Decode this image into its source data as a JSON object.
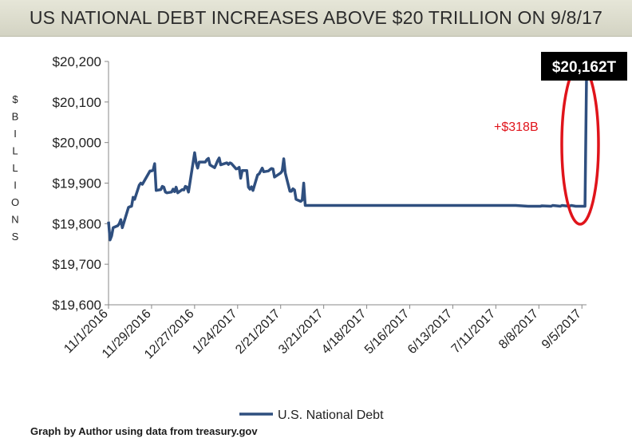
{
  "header": {
    "title": "US NATIONAL DEBT INCREASES ABOVE $20 TRILLION ON 9/8/17"
  },
  "footer": {
    "credit": "Graph by Author using data from treasury.gov"
  },
  "chart_data": {
    "type": "line",
    "title": "US NATIONAL DEBT INCREASES ABOVE $20 TRILLION ON 9/8/17",
    "ylabel": "$ BILLIONS",
    "ylabel_letters": [
      "$",
      "B",
      "I",
      "L",
      "L",
      "I",
      "O",
      "N",
      "S"
    ],
    "xlabel": "",
    "ylim": [
      19600,
      20200
    ],
    "yticks": [
      19600,
      19700,
      19800,
      19900,
      20000,
      20100,
      20200
    ],
    "ytick_labels": [
      "$19,600",
      "$19,700",
      "$19,800",
      "$19,900",
      "$20,000",
      "$20,100",
      "$20,200"
    ],
    "xlim": [
      "2016-11-01",
      "2017-09-08"
    ],
    "xticks": [
      "2016-11-01",
      "2016-11-29",
      "2016-12-27",
      "2017-01-24",
      "2017-02-21",
      "2017-03-21",
      "2017-04-18",
      "2017-05-16",
      "2017-06-13",
      "2017-07-11",
      "2017-08-08",
      "2017-09-05"
    ],
    "xtick_labels": [
      "11/1/2016",
      "11/29/2016",
      "12/27/2016",
      "1/24/2017",
      "2/21/2017",
      "3/21/2017",
      "4/18/2017",
      "5/16/2017",
      "6/13/2017",
      "7/11/2017",
      "8/8/2017",
      "9/5/2017"
    ],
    "grid": false,
    "legend": "bottom",
    "colors": {
      "series": "#2f4f7f",
      "highlight": "#e0141b",
      "callout_bg": "#000000",
      "callout_text": "#ffffff"
    },
    "series": [
      {
        "name": "U.S. National Debt",
        "x": [
          "2016-11-01",
          "2016-11-02",
          "2016-11-03",
          "2016-11-04",
          "2016-11-07",
          "2016-11-08",
          "2016-11-09",
          "2016-11-10",
          "2016-11-14",
          "2016-11-15",
          "2016-11-16",
          "2016-11-17",
          "2016-11-18",
          "2016-11-21",
          "2016-11-22",
          "2016-11-23",
          "2016-11-25",
          "2016-11-28",
          "2016-11-29",
          "2016-11-30",
          "2016-12-01",
          "2016-12-02",
          "2016-12-05",
          "2016-12-06",
          "2016-12-07",
          "2016-12-08",
          "2016-12-09",
          "2016-12-12",
          "2016-12-13",
          "2016-12-14",
          "2016-12-15",
          "2016-12-16",
          "2016-12-19",
          "2016-12-20",
          "2016-12-21",
          "2016-12-22",
          "2016-12-23",
          "2016-12-27",
          "2016-12-28",
          "2016-12-29",
          "2016-12-30",
          "2017-01-03",
          "2017-01-04",
          "2017-01-05",
          "2017-01-06",
          "2017-01-09",
          "2017-01-10",
          "2017-01-11",
          "2017-01-12",
          "2017-01-13",
          "2017-01-17",
          "2017-01-18",
          "2017-01-19",
          "2017-01-20",
          "2017-01-23",
          "2017-01-24",
          "2017-01-25",
          "2017-01-26",
          "2017-01-27",
          "2017-01-30",
          "2017-01-31",
          "2017-02-01",
          "2017-02-02",
          "2017-02-03",
          "2017-02-06",
          "2017-02-07",
          "2017-02-08",
          "2017-02-09",
          "2017-02-10",
          "2017-02-13",
          "2017-02-14",
          "2017-02-15",
          "2017-02-16",
          "2017-02-17",
          "2017-02-21",
          "2017-02-22",
          "2017-02-23",
          "2017-02-24",
          "2017-02-27",
          "2017-02-28",
          "2017-03-01",
          "2017-03-02",
          "2017-03-03",
          "2017-03-06",
          "2017-03-07",
          "2017-03-08",
          "2017-03-09",
          "2017-03-10",
          "2017-03-13",
          "2017-03-14",
          "2017-03-15",
          "2017-03-16",
          "2017-07-24",
          "2017-08-01",
          "2017-08-09",
          "2017-08-10",
          "2017-08-16",
          "2017-08-17",
          "2017-08-22",
          "2017-08-23",
          "2017-08-28",
          "2017-08-29",
          "2017-09-01",
          "2017-09-05",
          "2017-09-06",
          "2017-09-07",
          "2017-09-08"
        ],
        "values": [
          19805,
          19760,
          19770,
          19790,
          19795,
          19800,
          19810,
          19790,
          19840,
          19842,
          19843,
          19865,
          19860,
          19895,
          19900,
          19897,
          19910,
          19930,
          19930,
          19932,
          19948,
          19882,
          19884,
          19892,
          19890,
          19878,
          19876,
          19878,
          19885,
          19879,
          19890,
          19876,
          19884,
          19883,
          19892,
          19890,
          19878,
          19975,
          19950,
          19937,
          19952,
          19952,
          19958,
          19961,
          19945,
          19938,
          19946,
          19955,
          19962,
          19945,
          19950,
          19946,
          19950,
          19948,
          19935,
          19936,
          19939,
          19912,
          19931,
          19931,
          19890,
          19885,
          19891,
          19882,
          19920,
          19923,
          19930,
          19937,
          19928,
          19930,
          19933,
          19936,
          19935,
          19915,
          19925,
          19930,
          19960,
          19925,
          19880,
          19880,
          19886,
          19883,
          19860,
          19855,
          19858,
          19900,
          19845,
          19845,
          19845,
          19845,
          19845,
          19845,
          19845,
          19843,
          19843,
          19844,
          19843,
          19845,
          19843,
          19845,
          19843,
          19845,
          19843,
          19843,
          19843,
          19843,
          20162
        ]
      }
    ],
    "annotations": [
      {
        "text": "+$318B",
        "color": "#e0141b"
      },
      {
        "text": "$20,162T",
        "color": "#ffffff",
        "background": "#000000"
      }
    ]
  }
}
